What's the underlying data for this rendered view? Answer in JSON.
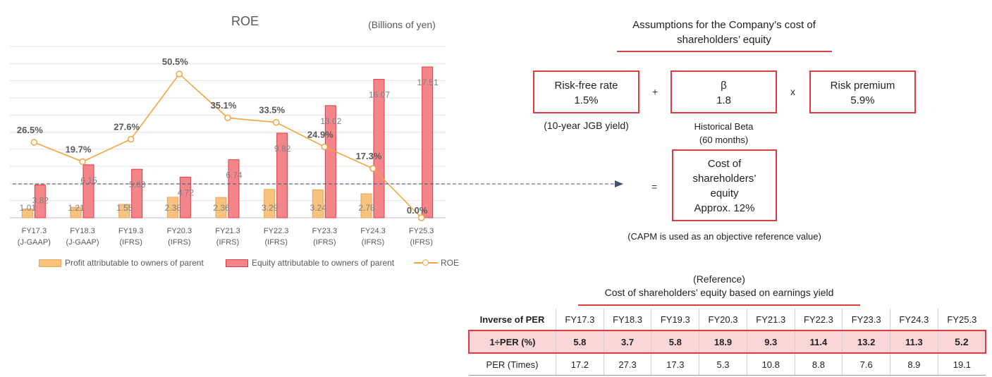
{
  "chart_data": {
    "type": "bar",
    "title": "ROE",
    "unit_note": "(Billions of yen)",
    "categories": [
      "FY17.3",
      "FY18.3",
      "FY19.3",
      "FY20.3",
      "FY21.3",
      "FY22.3",
      "FY23.3",
      "FY24.3",
      "FY25.3"
    ],
    "category_sublabels": [
      "(J-GAAP)",
      "(J-GAAP)",
      "(IFRS)",
      "(IFRS)",
      "(IFRS)",
      "(IFRS)",
      "(IFRS)",
      "(IFRS)",
      "(IFRS)"
    ],
    "series": [
      {
        "name": "Profit attributable to owners of parent",
        "type": "bar",
        "color": "#f8c27f",
        "values": [
          1.01,
          1.21,
          1.55,
          2.38,
          2.36,
          3.29,
          3.24,
          2.78,
          0
        ],
        "labels": [
          "1.01",
          "1.21",
          "1.55",
          "2.38",
          "2.36",
          "3.29",
          "3.24",
          "2.78",
          ""
        ]
      },
      {
        "name": "Equity attributable to owners of parent",
        "type": "bar",
        "color": "#f4858a",
        "values": [
          3.82,
          6.15,
          5.63,
          4.72,
          6.74,
          9.82,
          13.02,
          16.07,
          17.51
        ],
        "labels": [
          "3.82",
          "6.15",
          "5.63",
          "4.72",
          "6.74",
          "9.82",
          "13.02",
          "16.07",
          "17.51"
        ]
      },
      {
        "name": "ROE",
        "type": "line",
        "color": "#f4a43c",
        "values": [
          26.5,
          19.7,
          27.6,
          50.5,
          35.1,
          33.5,
          24.9,
          17.3,
          0.0
        ],
        "labels": [
          "26.5%",
          "19.7%",
          "27.6%",
          "50.5%",
          "35.1%",
          "33.5%",
          "24.9%",
          "17.3%",
          "0.0%"
        ]
      }
    ],
    "bar_axis_range": [
      0,
      18
    ],
    "roe_axis_range": [
      0,
      61
    ],
    "grid": true,
    "legend": "bottom"
  },
  "assumptions": {
    "title": "Assumptions for the Company’s cost of shareholders’ equity",
    "risk_free": {
      "label": "Risk-free rate",
      "value": "1.5%",
      "note": "(10-year JGB yield)"
    },
    "beta": {
      "label": "β",
      "value": "1.8",
      "note": "Historical Beta\n(60 months)"
    },
    "risk_premium": {
      "label": "Risk premium",
      "value": "5.9%"
    },
    "op_plus": "+",
    "op_times": "x",
    "op_equals": "=",
    "result": {
      "label": "Cost of shareholders’ equity",
      "value": "Approx. 12%"
    },
    "capm_note": "(CAPM is used as an objective reference value)"
  },
  "reference": {
    "title_line1": "(Reference)",
    "title_line2": "Cost of shareholders’ equity based on earnings yield",
    "header": [
      "Inverse of PER",
      "FY17.3",
      "FY18.3",
      "FY19.3",
      "FY20.3",
      "FY21.3",
      "FY22.3",
      "FY23.3",
      "FY24.3",
      "FY25.3"
    ],
    "inverse_row": [
      "1÷PER (%)",
      "5.8",
      "3.7",
      "5.8",
      "18.9",
      "9.3",
      "11.4",
      "13.2",
      "11.3",
      "5.2"
    ],
    "per_row": [
      "PER (Times)",
      "17.2",
      "27.3",
      "17.3",
      "5.3",
      "10.8",
      "8.8",
      "7.6",
      "8.9",
      "19.1"
    ]
  }
}
